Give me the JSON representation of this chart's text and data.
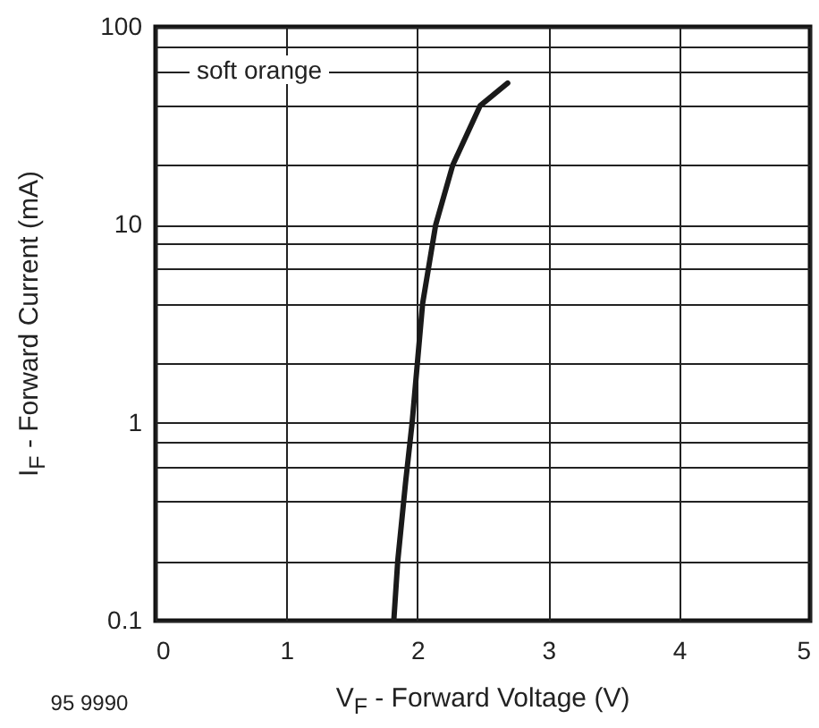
{
  "chart_data": {
    "type": "line",
    "xlabel": "V$_{F}$ - Forward Voltage (V)",
    "ylabel": "I$_{F}$ - Forward Current (mA)",
    "annotations": [
      "soft orange",
      "95 9990"
    ],
    "x": [
      1.82,
      1.85,
      1.91,
      1.96,
      2.0,
      2.04,
      2.14,
      2.27,
      2.48,
      2.69
    ],
    "series": [
      {
        "color": "#1a1a1a",
        "values": [
          0.1,
          0.2,
          0.5,
          1,
          2,
          4,
          10,
          20,
          40,
          52
        ]
      }
    ],
    "xlim": [
      0,
      5
    ],
    "xticks": [
      0,
      1,
      2,
      3,
      4,
      5
    ],
    "ylim": [
      0.1,
      100
    ],
    "yticks": [
      0.1,
      {
        "value": 0.2,
        "label": null
      },
      {
        "value": 0.4,
        "label": null
      },
      {
        "value": 0.6,
        "label": null
      },
      {
        "value": 0.8,
        "label": null
      },
      1,
      {
        "value": 2,
        "label": null
      },
      {
        "value": 4,
        "label": null
      },
      {
        "value": 6,
        "label": null
      },
      {
        "value": 8,
        "label": null
      },
      10,
      {
        "value": 20,
        "label": null
      },
      {
        "value": 40,
        "label": null
      },
      {
        "value": 60,
        "label": null
      },
      {
        "value": 80,
        "label": null
      },
      100
    ],
    "log": true,
    "grid": true,
    "line_style": "solid"
  }
}
